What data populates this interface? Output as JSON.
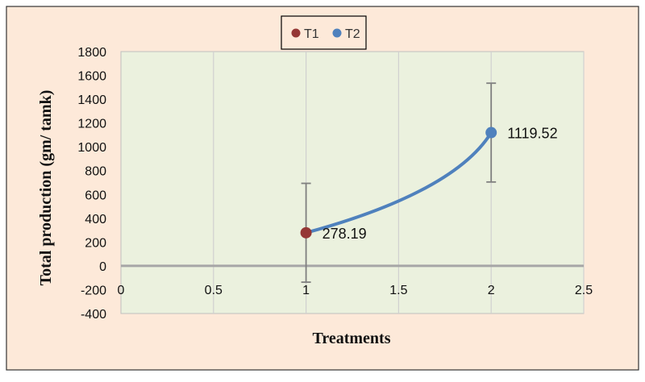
{
  "chart_data": {
    "type": "scatter",
    "xlabel": "Treatments",
    "ylabel": "Total production (gm/ tamk)",
    "xlim": [
      0,
      2.5
    ],
    "ylim": [
      -400,
      1800
    ],
    "x_ticks": [
      0,
      0.5,
      1,
      1.5,
      2,
      2.5
    ],
    "x_tick_labels": [
      "0",
      "0.5",
      "1",
      "1.5",
      "2",
      "2.5"
    ],
    "y_ticks": [
      -400,
      -200,
      0,
      200,
      400,
      600,
      800,
      1000,
      1200,
      1400,
      1600,
      1800
    ],
    "y_tick_labels": [
      "-400",
      "-200",
      "0",
      "200",
      "400",
      "600",
      "800",
      "1000",
      "1200",
      "1400",
      "1600",
      "1800"
    ],
    "grid": "vertical",
    "legend_position": "top",
    "series": [
      {
        "name": "T1",
        "x": 1,
        "y": 278.19,
        "error": 415,
        "label": "278.19",
        "color": "#953735"
      },
      {
        "name": "T2",
        "x": 2,
        "y": 1119.52,
        "error": 415,
        "label": "1119.52",
        "color": "#4f81bd"
      }
    ],
    "connector_color": "#4f81bd",
    "colors": {
      "outer_background": "#fde9d9",
      "plot_background": "#ebf1de",
      "error_bar": "#7f7f7f"
    }
  }
}
